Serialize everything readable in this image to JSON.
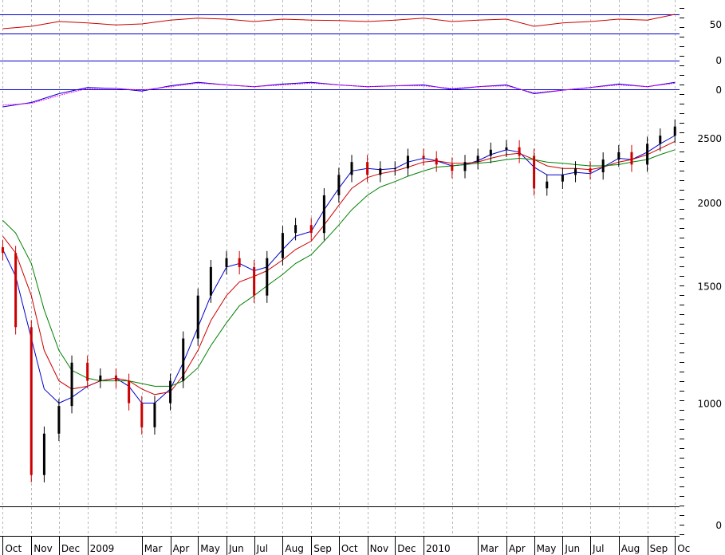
{
  "chart_data": [
    {
      "type": "line",
      "panel": "oscillator-rsi",
      "series": [
        {
          "color": "#cc0000",
          "x": [
            "2008-10-01",
            "2008-11-01",
            "2008-12-01",
            "2009-01-01",
            "2009-02-01",
            "2009-03-01",
            "2009-04-01",
            "2009-05-01",
            "2009-06-01",
            "2009-07-01",
            "2009-08-01",
            "2009-09-01",
            "2009-10-01",
            "2009-11-01",
            "2009-12-01",
            "2010-01-01",
            "2010-02-01",
            "2010-03-01",
            "2010-04-01",
            "2010-05-01",
            "2010-06-01",
            "2010-07-01",
            "2010-08-01",
            "2010-09-01",
            "2010-10-01"
          ],
          "values": [
            40,
            45,
            55,
            52,
            48,
            50,
            58,
            62,
            60,
            55,
            60,
            58,
            57,
            55,
            58,
            62,
            55,
            58,
            60,
            45,
            52,
            55,
            60,
            58,
            70
          ]
        }
      ],
      "y_tick_labels": [
        "50"
      ],
      "reference_lines": [
        70,
        30
      ]
    },
    {
      "type": "line",
      "panel": "oscillator-macd",
      "series": [
        {
          "color": "#0000cc",
          "x": [
            "2008-10-01",
            "2008-11-01",
            "2008-12-01",
            "2009-01-01",
            "2009-02-01",
            "2009-03-01",
            "2009-04-01",
            "2009-05-01",
            "2009-06-01",
            "2009-07-01",
            "2009-08-01",
            "2009-09-01",
            "2009-10-01",
            "2009-11-01",
            "2009-12-01",
            "2010-01-01",
            "2010-02-01",
            "2010-03-01",
            "2010-04-01",
            "2010-05-01",
            "2010-06-01",
            "2010-07-01",
            "2010-08-01",
            "2010-09-01",
            "2010-10-01"
          ],
          "values": [
            -20,
            -15,
            -5,
            2,
            1,
            -2,
            4,
            8,
            5,
            3,
            6,
            8,
            5,
            3,
            4,
            5,
            0,
            3,
            5,
            -5,
            -1,
            2,
            6,
            3,
            8
          ]
        },
        {
          "color": "#ff00ff",
          "x": [
            "2008-10-01",
            "2008-11-01",
            "2008-12-01",
            "2009-01-01",
            "2009-02-01",
            "2009-03-01",
            "2009-04-01",
            "2009-05-01",
            "2009-06-01",
            "2009-07-01",
            "2009-08-01",
            "2009-09-01",
            "2009-10-01",
            "2009-11-01",
            "2009-12-01",
            "2010-01-01",
            "2010-02-01",
            "2010-03-01",
            "2010-04-01",
            "2010-05-01",
            "2010-06-01",
            "2010-07-01",
            "2010-08-01",
            "2010-09-01",
            "2010-10-01"
          ],
          "values": [
            -18,
            -16,
            -7,
            1,
            1,
            -1,
            3,
            7,
            5,
            3,
            5,
            7,
            5,
            3,
            4,
            4,
            1,
            3,
            4,
            -4,
            -1,
            2,
            5,
            3,
            7
          ]
        }
      ],
      "y_tick_labels": [
        "0",
        "0"
      ],
      "reference_lines": [
        0
      ]
    },
    {
      "type": "candlestick",
      "panel": "price",
      "log_scale": true,
      "ylim": [
        700,
        2700
      ],
      "y_ticks": [
        1000,
        1500,
        2000,
        2500
      ],
      "y_tick_labels": [
        "1000",
        "1500",
        "2000",
        "2500"
      ],
      "x_tick_labels": [
        "Oct",
        "Nov",
        "Dec",
        "2009",
        "Mar",
        "Apr",
        "May",
        "Jun",
        "Jul",
        "Aug",
        "Sep",
        "Oct",
        "Nov",
        "Dec",
        "2010",
        "Mar",
        "Apr",
        "May",
        "Jun",
        "Jul",
        "Aug",
        "Sep",
        "Oc"
      ],
      "x": [
        "2008-10-01",
        "2008-10-15",
        "2008-11-01",
        "2008-11-15",
        "2008-12-01",
        "2008-12-15",
        "2009-01-01",
        "2009-01-15",
        "2009-02-01",
        "2009-02-15",
        "2009-03-01",
        "2009-03-15",
        "2009-04-01",
        "2009-04-15",
        "2009-05-01",
        "2009-05-15",
        "2009-06-01",
        "2009-06-15",
        "2009-07-01",
        "2009-07-15",
        "2009-08-01",
        "2009-08-15",
        "2009-09-01",
        "2009-09-15",
        "2009-10-01",
        "2009-10-15",
        "2009-11-01",
        "2009-11-15",
        "2009-12-01",
        "2009-12-15",
        "2010-01-01",
        "2010-01-15",
        "2010-02-01",
        "2010-02-15",
        "2010-03-01",
        "2010-03-15",
        "2010-04-01",
        "2010-04-15",
        "2010-05-01",
        "2010-05-15",
        "2010-06-01",
        "2010-06-15",
        "2010-07-01",
        "2010-07-15",
        "2010-08-01",
        "2010-08-15",
        "2010-09-01",
        "2010-09-15",
        "2010-10-01"
      ],
      "close": [
        1680,
        1300,
        780,
        900,
        990,
        1150,
        1080,
        1100,
        1080,
        1000,
        920,
        1000,
        1080,
        1250,
        1450,
        1600,
        1650,
        1600,
        1450,
        1650,
        1800,
        1850,
        1800,
        2050,
        2200,
        2300,
        2200,
        2250,
        2250,
        2350,
        2330,
        2280,
        2230,
        2300,
        2350,
        2400,
        2420,
        2350,
        2100,
        2150,
        2200,
        2250,
        2220,
        2320,
        2380,
        2280,
        2450,
        2520,
        2600
      ],
      "series": [
        {
          "color": "#0000cc",
          "values": [
            1700,
            1550,
            1250,
            1050,
            1000,
            1020,
            1060,
            1080,
            1090,
            1060,
            1000,
            1000,
            1050,
            1150,
            1300,
            1450,
            1600,
            1620,
            1580,
            1600,
            1700,
            1780,
            1810,
            1950,
            2100,
            2230,
            2250,
            2240,
            2250,
            2300,
            2330,
            2310,
            2270,
            2280,
            2310,
            2360,
            2400,
            2380,
            2260,
            2200,
            2200,
            2220,
            2210,
            2260,
            2330,
            2320,
            2380,
            2450,
            2520
          ]
        },
        {
          "color": "#cc0000",
          "values": [
            1780,
            1680,
            1450,
            1200,
            1080,
            1050,
            1060,
            1080,
            1090,
            1080,
            1050,
            1030,
            1040,
            1100,
            1200,
            1330,
            1450,
            1520,
            1550,
            1580,
            1640,
            1700,
            1750,
            1850,
            1980,
            2100,
            2180,
            2210,
            2230,
            2260,
            2300,
            2310,
            2290,
            2290,
            2300,
            2330,
            2360,
            2370,
            2320,
            2270,
            2250,
            2250,
            2240,
            2260,
            2300,
            2320,
            2360,
            2410,
            2470
          ]
        },
        {
          "color": "#008000",
          "values": [
            1880,
            1800,
            1620,
            1380,
            1200,
            1120,
            1090,
            1080,
            1080,
            1080,
            1070,
            1060,
            1060,
            1080,
            1130,
            1220,
            1320,
            1400,
            1450,
            1500,
            1560,
            1620,
            1670,
            1750,
            1850,
            1950,
            2050,
            2110,
            2150,
            2190,
            2230,
            2260,
            2270,
            2280,
            2290,
            2300,
            2320,
            2330,
            2320,
            2300,
            2290,
            2280,
            2270,
            2270,
            2280,
            2300,
            2320,
            2360,
            2400
          ]
        }
      ]
    }
  ]
}
